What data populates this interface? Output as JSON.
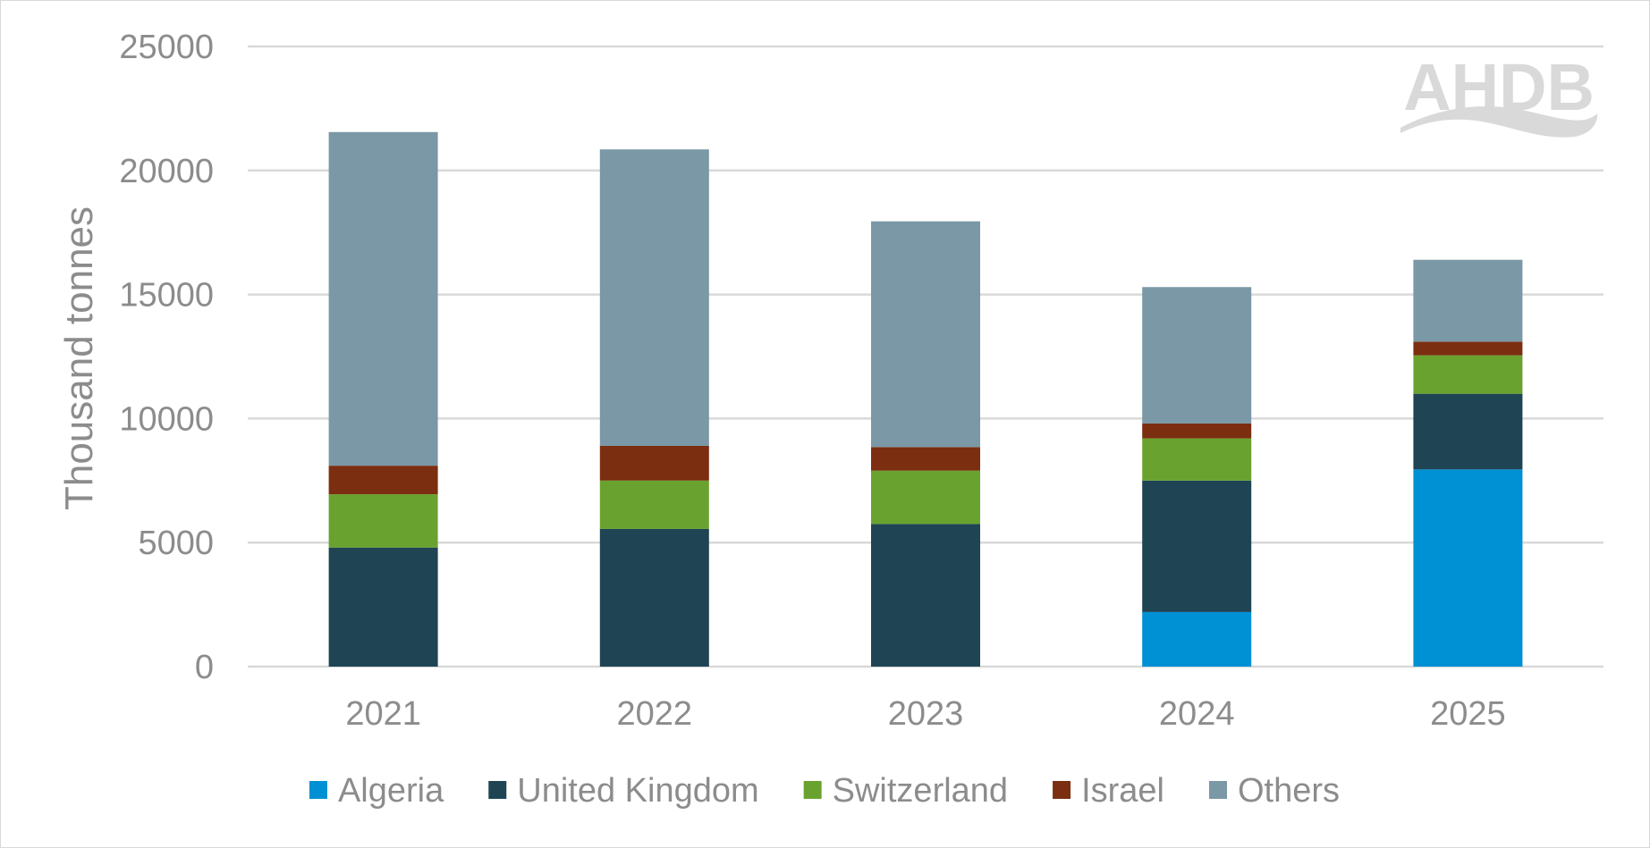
{
  "chart_data": {
    "type": "bar",
    "stacked": true,
    "categories": [
      "2021",
      "2022",
      "2023",
      "2024",
      "2025"
    ],
    "series": [
      {
        "name": "Algeria",
        "color": "#0090d4",
        "values": [
          0,
          0,
          0,
          2200,
          7950
        ]
      },
      {
        "name": "United Kingdom",
        "color": "#1f4454",
        "values": [
          4800,
          5550,
          5750,
          5300,
          3050
        ]
      },
      {
        "name": "Switzerland",
        "color": "#6aa22f",
        "values": [
          2150,
          1950,
          2150,
          1700,
          1550
        ]
      },
      {
        "name": "Israel",
        "color": "#7b2e10",
        "values": [
          1150,
          1400,
          950,
          600,
          550
        ]
      },
      {
        "name": "Others",
        "color": "#7a98a6",
        "values": [
          13450,
          11950,
          9100,
          5500,
          3300
        ]
      }
    ],
    "title": "",
    "xlabel": "",
    "ylabel": "Thousand tonnes",
    "ylim": [
      0,
      25000
    ],
    "yticks": [
      0,
      5000,
      10000,
      15000,
      20000,
      25000
    ],
    "grid": true,
    "legend_position": "bottom"
  },
  "logo": {
    "text": "AHDB"
  },
  "colors": {
    "grid": "#d9d9d9",
    "text": "#8c8c8c",
    "logo": "#d9d9d9"
  }
}
